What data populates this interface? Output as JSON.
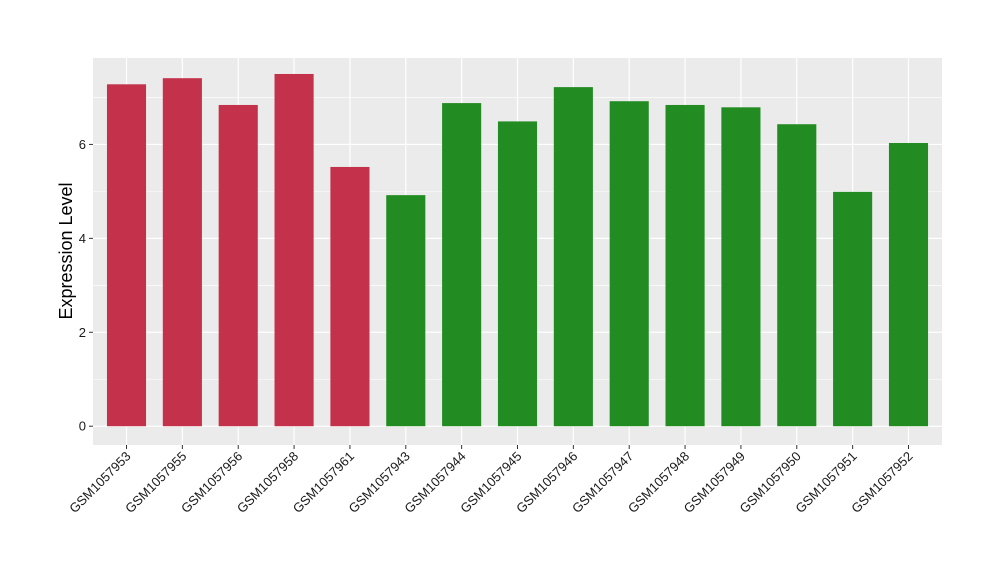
{
  "chart_data": {
    "type": "bar",
    "title": "",
    "xlabel": "",
    "ylabel": "Expression Level",
    "ylim": [
      -0.4,
      7.84
    ],
    "yticks": [
      0,
      2,
      4,
      6
    ],
    "grid": true,
    "background": "#EBEBEB",
    "categories": [
      "GSM1057953",
      "GSM1057955",
      "GSM1057956",
      "GSM1057958",
      "GSM1057961",
      "GSM1057943",
      "GSM1057944",
      "GSM1057945",
      "GSM1057946",
      "GSM1057947",
      "GSM1057948",
      "GSM1057949",
      "GSM1057950",
      "GSM1057951",
      "GSM1057952"
    ],
    "values": [
      7.28,
      7.41,
      6.84,
      7.5,
      5.52,
      4.92,
      6.88,
      6.49,
      7.22,
      6.92,
      6.84,
      6.79,
      6.43,
      4.99,
      6.03
    ],
    "colors": [
      "#C3314A",
      "#C3314A",
      "#C3314A",
      "#C3314A",
      "#C3314A",
      "#228B22",
      "#228B22",
      "#228B22",
      "#228B22",
      "#228B22",
      "#228B22",
      "#228B22",
      "#228B22",
      "#228B22",
      "#228B22"
    ]
  }
}
